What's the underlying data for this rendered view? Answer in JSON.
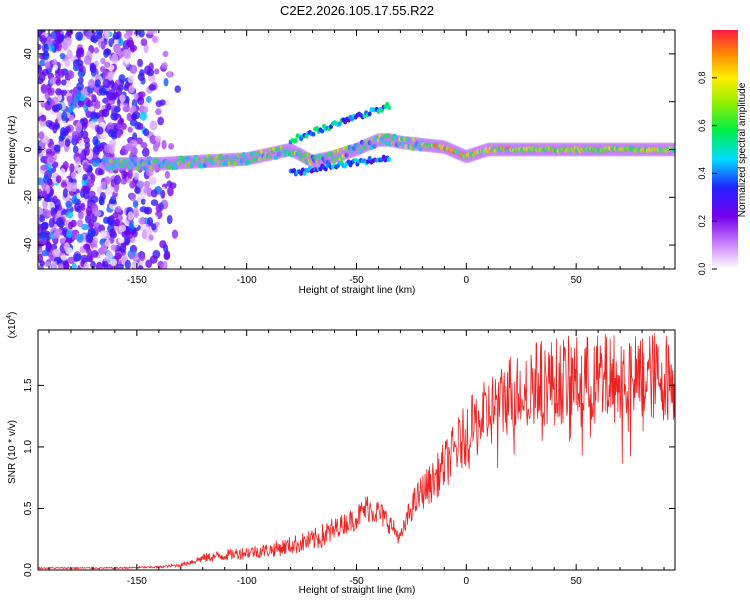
{
  "title": "C2E2.2026.105.17.55.R22",
  "colors": {
    "snr_line": "#ee2222",
    "axis": "#000000"
  },
  "chart_data": [
    {
      "type": "heatmap",
      "title": "C2E2.2026.105.17.55.R22",
      "xlabel": "Height of straight line (km)",
      "ylabel": "Frequency (Hz)",
      "xlim": [
        -195,
        95
      ],
      "ylim": [
        -50,
        50
      ],
      "x_ticks": [
        -150,
        -100,
        -50,
        0,
        50
      ],
      "y_ticks": [
        -40,
        -20,
        0,
        20,
        40
      ],
      "colorbar": {
        "label": "Normalized spectral amplitude",
        "range": [
          0.0,
          1.0
        ],
        "ticks": [
          "0.0",
          "0.2",
          "0.4",
          "0.6",
          "0.8"
        ]
      },
      "ridge": {
        "description_points_x": [
          -160,
          -140,
          -120,
          -100,
          -90,
          -80,
          -70,
          -60,
          -50,
          -40,
          -35,
          -30,
          -20,
          -10,
          0,
          10,
          20,
          40,
          60,
          80,
          95
        ],
        "description_points_y": [
          -6,
          -6,
          -5,
          -4,
          -2,
          0,
          -5,
          -3,
          0,
          4,
          4,
          3,
          2,
          1,
          -3,
          0,
          0,
          0,
          0,
          0,
          0
        ]
      }
    },
    {
      "type": "line",
      "xlabel": "Height of straight line (km)",
      "ylabel": "SNR (10 * v/v)",
      "y_multiplier_label": "(x10",
      "y_multiplier_exponent": "4",
      "y_multiplier_close": ")",
      "xlim": [
        -195,
        95
      ],
      "ylim": [
        0,
        1.95
      ],
      "x_ticks": [
        -150,
        -100,
        -50,
        0,
        50
      ],
      "y_ticks": [
        "0.0",
        "0.5",
        "1.0",
        "1.5"
      ],
      "series": [
        {
          "name": "SNR",
          "envelope_x": [
            -195,
            -160,
            -140,
            -130,
            -120,
            -110,
            -100,
            -90,
            -80,
            -70,
            -60,
            -50,
            -45,
            -40,
            -35,
            -30,
            -25,
            -20,
            -15,
            -10,
            -5,
            0,
            5,
            10,
            15,
            20,
            25,
            30,
            40,
            50,
            60,
            70,
            80,
            95
          ],
          "envelope_y": [
            0.02,
            0.02,
            0.03,
            0.05,
            0.12,
            0.15,
            0.18,
            0.2,
            0.25,
            0.3,
            0.4,
            0.5,
            0.6,
            0.55,
            0.45,
            0.3,
            0.6,
            0.75,
            0.85,
            1.0,
            1.15,
            1.3,
            1.4,
            1.5,
            1.6,
            1.7,
            1.75,
            1.78,
            1.8,
            1.82,
            1.83,
            1.84,
            1.85,
            1.85
          ]
        }
      ]
    }
  ]
}
